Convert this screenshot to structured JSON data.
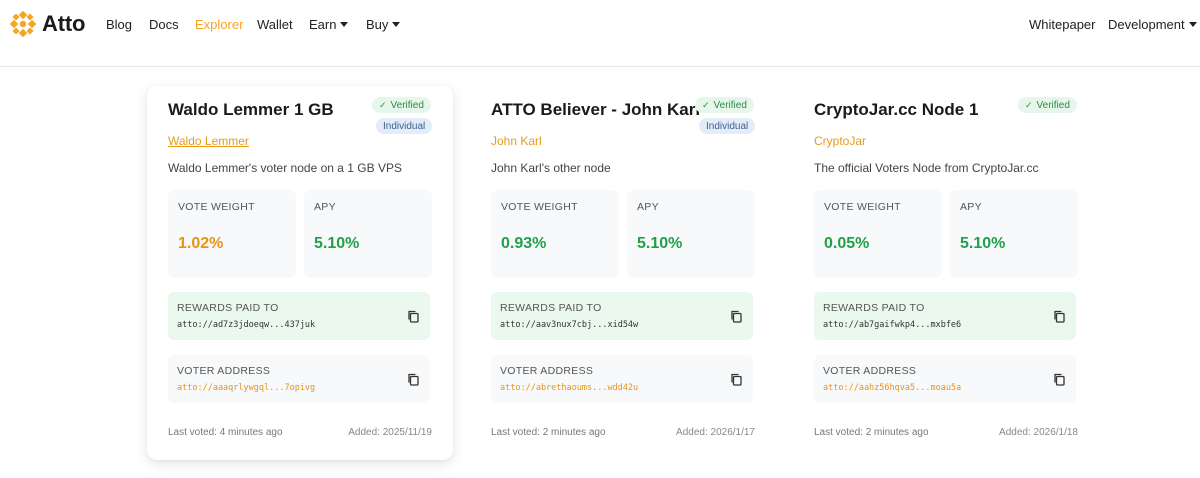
{
  "brand": {
    "name": "Atto",
    "icon": "atto-logo-icon"
  },
  "nav": {
    "left": [
      {
        "label": "Blog"
      },
      {
        "label": "Docs"
      },
      {
        "label": "Explorer",
        "active": true
      },
      {
        "label": "Wallet"
      },
      {
        "label": "Earn",
        "dropdown": true
      },
      {
        "label": "Buy",
        "dropdown": true
      }
    ],
    "right": [
      {
        "label": "Whitepaper"
      },
      {
        "label": "Development",
        "dropdown": true
      }
    ]
  },
  "labels": {
    "vote_weight": "VOTE WEIGHT",
    "apy": "APY",
    "rewards_paid_to": "REWARDS PAID TO",
    "voter_address": "VOTER ADDRESS"
  },
  "colors": {
    "accent": "#f5a623",
    "orange_value": "#e69418",
    "green_value": "#22a049",
    "verified_bg": "#e6f6ea",
    "individual_bg": "#e3ecf8"
  },
  "cards": [
    {
      "title": "Waldo Lemmer 1 GB",
      "verified": "Verified",
      "individual": "Individual",
      "owner": "Waldo Lemmer",
      "description": "Waldo Lemmer's voter node on a 1 GB VPS",
      "vote_weight": "1.02%",
      "apy": "5.10%",
      "rewards_address": "atto://ad7z3jdoeqw...437juk",
      "voter_address": "atto://aaaqrlywgql...7opivg",
      "last_voted": "Last voted: 4 minutes ago",
      "added": "Added: 2025/11/19"
    },
    {
      "title": "ATTO Believer - John Karl",
      "verified": "Verified",
      "individual": "Individual",
      "owner": "John Karl",
      "description": "John Karl's other node",
      "vote_weight": "0.93%",
      "apy": "5.10%",
      "rewards_address": "atto://aav3nux7cbj...xid54w",
      "voter_address": "atto://abrethaoums...wdd42u",
      "last_voted": "Last voted: 2 minutes ago",
      "added": "Added: 2026/1/17"
    },
    {
      "title": "CryptoJar.cc Node 1",
      "verified": "Verified",
      "owner": "CryptoJar",
      "description": "The official Voters Node from CryptoJar.cc",
      "vote_weight": "0.05%",
      "apy": "5.10%",
      "rewards_address": "atto://ab7gaifwkp4...mxbfe6",
      "voter_address": "atto://aahz56hqva5...moau5a",
      "last_voted": "Last voted: 2 minutes ago",
      "added": "Added: 2026/1/18"
    }
  ]
}
